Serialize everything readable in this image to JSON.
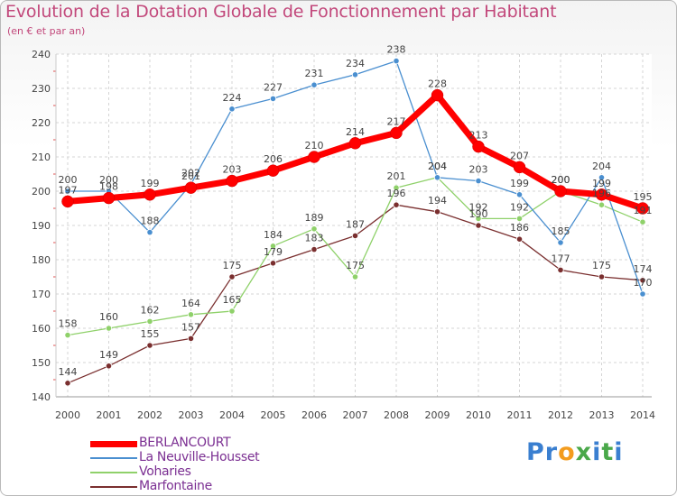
{
  "chart_data": {
    "type": "line",
    "title": "Evolution de la Dotation Globale de Fonctionnement par Habitant",
    "subtitle": "(en € et par an)",
    "x": [
      "2000",
      "2001",
      "2002",
      "2003",
      "2004",
      "2005",
      "2006",
      "2007",
      "2008",
      "2009",
      "2010",
      "2011",
      "2012",
      "2013",
      "2014"
    ],
    "ylim": [
      140,
      240
    ],
    "yticks": [
      "140",
      "150",
      "160",
      "170",
      "180",
      "190",
      "200",
      "210",
      "220",
      "230",
      "240"
    ],
    "grid": true,
    "legend_position": "bottom-left",
    "series": [
      {
        "name": "BERLANCOURT",
        "color": "#ff0000",
        "values": [
          197,
          198,
          199,
          201,
          203,
          206,
          210,
          214,
          217,
          228,
          213,
          207,
          200,
          199,
          195
        ]
      },
      {
        "name": "La Neuville-Housset",
        "color": "#4a8fd0",
        "values": [
          200,
          200,
          188,
          202,
          224,
          227,
          231,
          234,
          238,
          204,
          203,
          199,
          185,
          204,
          170
        ]
      },
      {
        "name": "Voharies",
        "color": "#8fd16a",
        "values": [
          158,
          160,
          162,
          164,
          165,
          184,
          189,
          175,
          201,
          204,
          192,
          192,
          200,
          196,
          191
        ]
      },
      {
        "name": "Marfontaine",
        "color": "#7a2f2f",
        "values": [
          144,
          149,
          155,
          157,
          175,
          179,
          183,
          187,
          196,
          194,
          190,
          186,
          177,
          175,
          174
        ]
      }
    ]
  },
  "branding": {
    "parts": [
      "Pr",
      "o",
      "x",
      "i",
      "t",
      "i"
    ],
    "colors": [
      "#3a7fd0",
      "#f39c1e",
      "#4aa84a",
      "#3a7fd0",
      "#4aa84a",
      "#3a7fd0"
    ]
  }
}
